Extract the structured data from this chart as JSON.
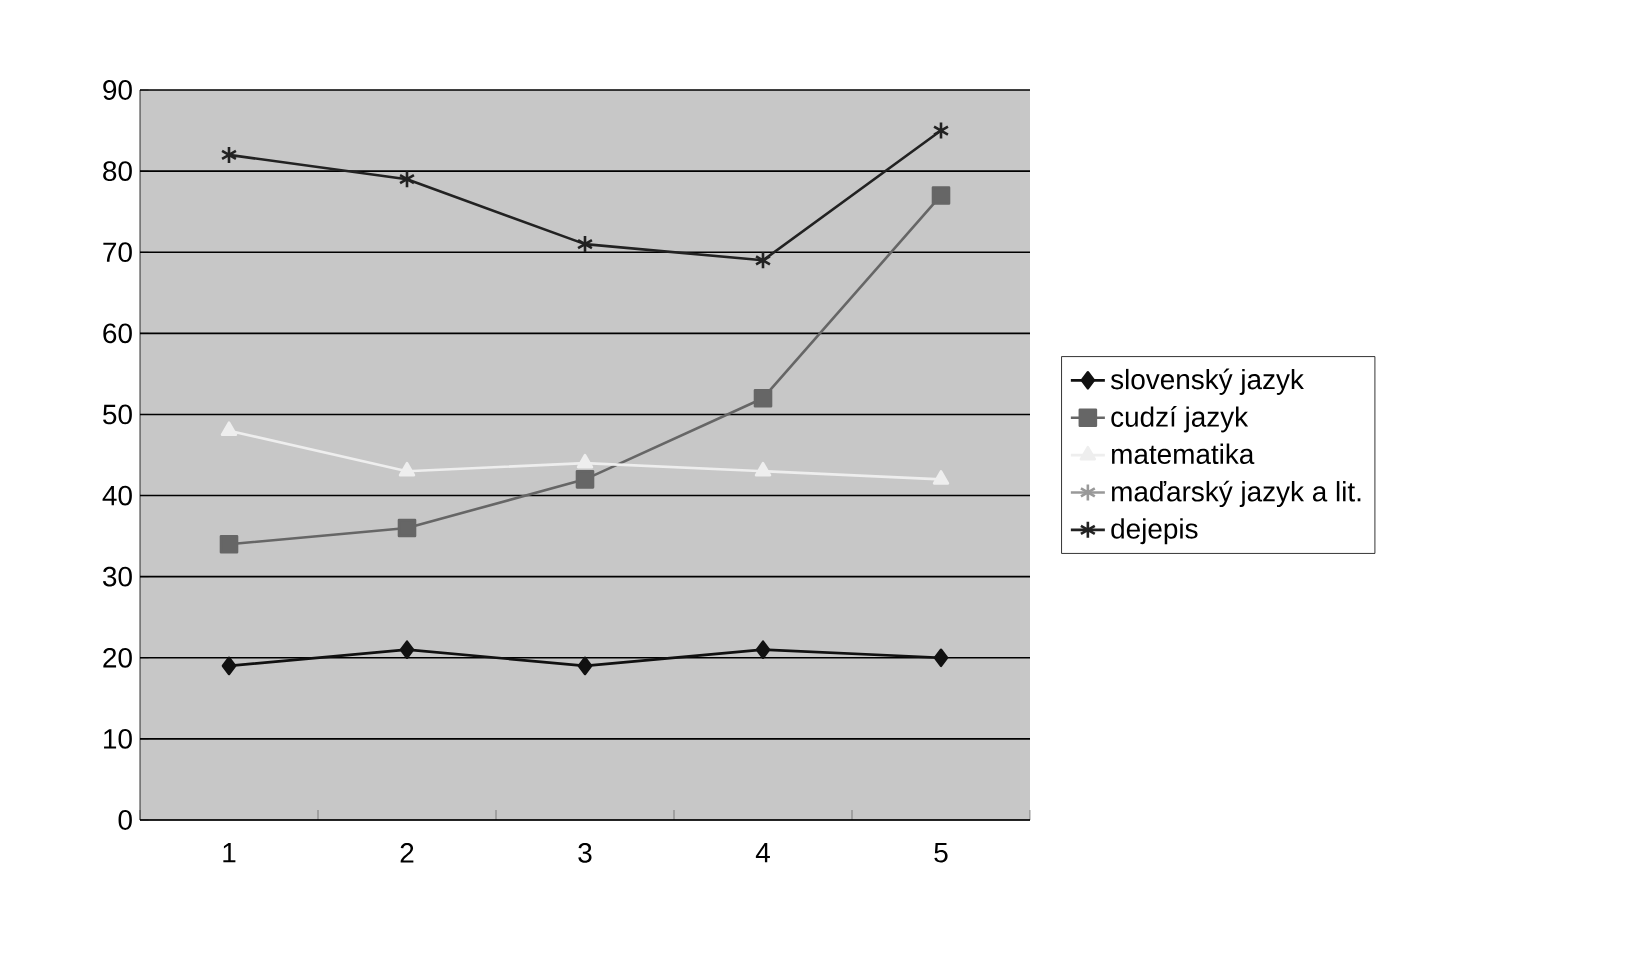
{
  "chart_data": {
    "type": "line",
    "categories": [
      "1",
      "2",
      "3",
      "4",
      "5"
    ],
    "series": [
      {
        "name": "slovenský jazyk",
        "color": "#111111",
        "marker": "diamond",
        "values": [
          19,
          21,
          19,
          21,
          20
        ]
      },
      {
        "name": "cudzí jazyk",
        "color": "#666666",
        "marker": "square",
        "values": [
          34,
          36,
          42,
          52,
          77
        ]
      },
      {
        "name": "matematika",
        "color": "#eeeeee",
        "marker": "triangle",
        "values": [
          48,
          43,
          44,
          43,
          42
        ]
      },
      {
        "name": "maďarský jazyk a lit.",
        "color": "#999999",
        "marker": "cross",
        "values": [
          null,
          null,
          null,
          null,
          null
        ]
      },
      {
        "name": "dejepis",
        "color": "#222222",
        "marker": "cross",
        "values": [
          82,
          79,
          71,
          69,
          85
        ]
      }
    ],
    "ylim": [
      0,
      90
    ],
    "yticks": [
      0,
      10,
      20,
      30,
      40,
      50,
      60,
      70,
      80,
      90
    ],
    "grid": "y",
    "legend": "right",
    "line_style": "solid"
  }
}
